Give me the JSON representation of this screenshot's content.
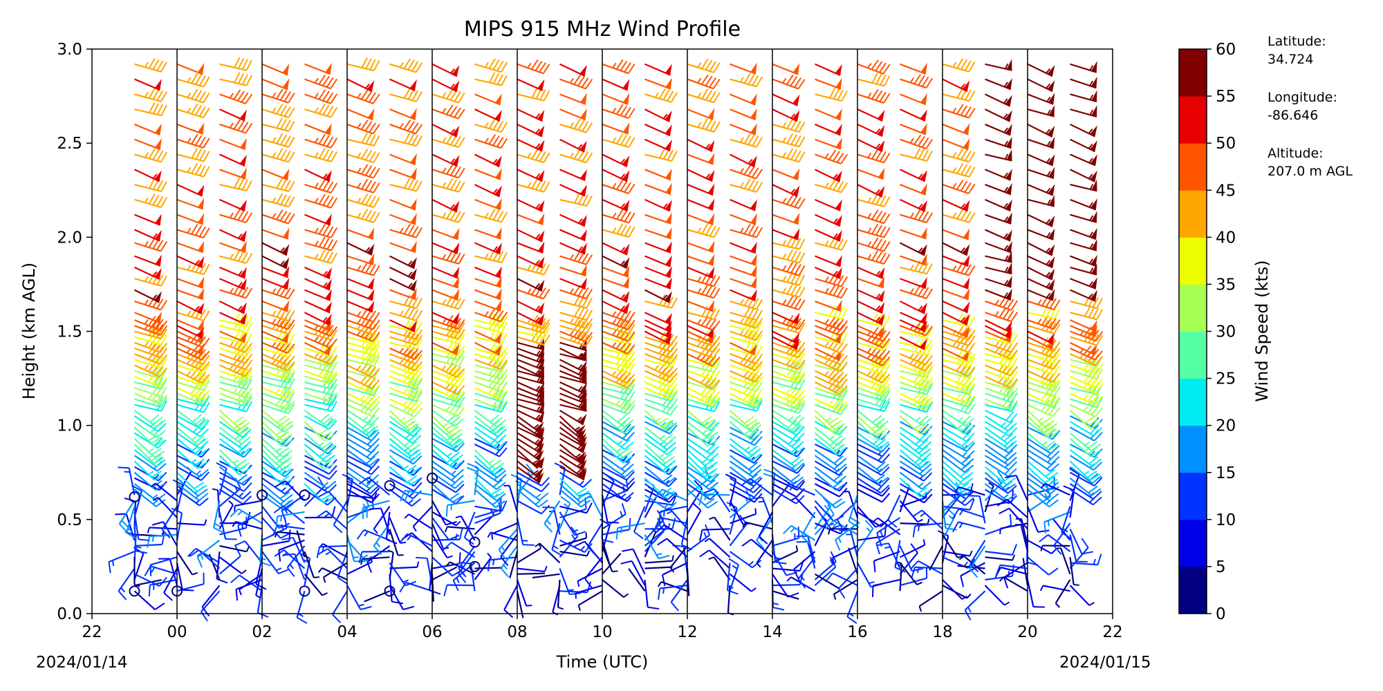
{
  "chart_data": {
    "type": "wind-barb profile",
    "title": "MIPS 915 MHz Wind Profile",
    "xlabel": "Time (UTC)",
    "ylabel": "Height (km AGL)",
    "x_tick_labels": [
      "22",
      "00",
      "02",
      "04",
      "06",
      "08",
      "10",
      "12",
      "14",
      "16",
      "18",
      "20",
      "22"
    ],
    "y_tick_labels": [
      "0.0",
      "0.5",
      "1.0",
      "1.5",
      "2.0",
      "2.5",
      "3.0"
    ],
    "xlim_hours": [
      22,
      46
    ],
    "ylim": [
      0,
      3.0
    ],
    "start_date_label": "2024/01/14",
    "end_date_label": "2024/01/15",
    "colorbar": {
      "label": "Wind Speed (kts)",
      "ticks": [
        "0",
        "5",
        "10",
        "15",
        "20",
        "25",
        "30",
        "35",
        "40",
        "45",
        "50",
        "55",
        "60"
      ],
      "bounds": [
        0,
        5,
        10,
        15,
        20,
        25,
        30,
        35,
        40,
        45,
        50,
        55,
        60
      ],
      "colors": [
        "#000080",
        "#0000e6",
        "#0033ff",
        "#0090ff",
        "#00ecf0",
        "#55ffa6",
        "#a6ff55",
        "#ecff00",
        "#ffa600",
        "#ff5500",
        "#e60000",
        "#800000"
      ]
    },
    "station": {
      "latitude_label": "Latitude:",
      "latitude": "34.724",
      "longitude_label": "Longitude:",
      "longitude": "-86.646",
      "altitude_label": "Altitude:",
      "altitude": "207.0 m AGL"
    },
    "profile_times_hours": [
      23,
      24,
      25,
      26,
      27,
      28,
      29,
      30,
      31,
      32,
      33,
      34,
      35,
      36,
      37,
      38,
      39,
      40,
      41,
      42,
      43,
      44,
      45
    ],
    "profile_heights_km": [
      0.12,
      0.15,
      0.18,
      0.21,
      0.24,
      0.27,
      0.3,
      0.33,
      0.36,
      0.39,
      0.42,
      0.45,
      0.48,
      0.51,
      0.54,
      0.57,
      0.6,
      0.63,
      0.66,
      0.69,
      0.72,
      0.75,
      0.78,
      0.81,
      0.84,
      0.87,
      0.9,
      0.93,
      0.96,
      0.99,
      1.02,
      1.05,
      1.08,
      1.11,
      1.14,
      1.17,
      1.2,
      1.23,
      1.26,
      1.29,
      1.32,
      1.35,
      1.38,
      1.41,
      1.44,
      1.47,
      1.5,
      1.53,
      1.56,
      1.6,
      1.66,
      1.72,
      1.78,
      1.84,
      1.9,
      1.97,
      2.04,
      2.12,
      2.2,
      2.28,
      2.36,
      2.44,
      2.52,
      2.6,
      2.68,
      2.76,
      2.84,
      2.92
    ],
    "speed_profile_kts": [
      {
        "height_km": 0.3,
        "kts": 8
      },
      {
        "height_km": 0.6,
        "kts": 12
      },
      {
        "height_km": 0.9,
        "kts": 20
      },
      {
        "height_km": 1.1,
        "kts": 28
      },
      {
        "height_km": 1.3,
        "kts": 38
      },
      {
        "height_km": 1.5,
        "kts": 45
      },
      {
        "height_km": 1.8,
        "kts": 50
      },
      {
        "height_km": 2.3,
        "kts": 48
      },
      {
        "height_km": 2.9,
        "kts": 47
      }
    ],
    "calm_markers": [
      {
        "time_h": 23.0,
        "height_km": 0.12
      },
      {
        "time_h": 24.0,
        "height_km": 0.12
      },
      {
        "time_h": 27.0,
        "height_km": 0.12
      },
      {
        "time_h": 29.0,
        "height_km": 0.12
      },
      {
        "time_h": 31.0,
        "height_km": 0.25
      },
      {
        "time_h": 31.0,
        "height_km": 0.38
      },
      {
        "time_h": 23.0,
        "height_km": 0.62
      },
      {
        "time_h": 26.0,
        "height_km": 0.63
      },
      {
        "time_h": 27.0,
        "height_km": 0.63
      },
      {
        "time_h": 29.0,
        "height_km": 0.68
      },
      {
        "time_h": 30.0,
        "height_km": 0.72
      }
    ]
  }
}
